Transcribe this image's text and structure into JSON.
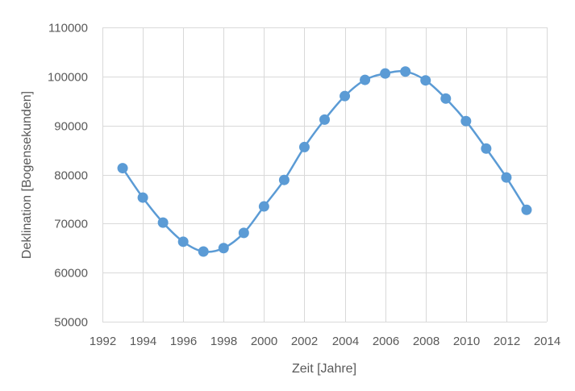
{
  "chart_data": {
    "type": "line",
    "title": "",
    "xlabel": "Zeit [Jahre]",
    "ylabel": "Deklination [Bogensekunden]",
    "xlim": [
      1992,
      2014
    ],
    "ylim": [
      50000,
      110000
    ],
    "x_ticks": [
      "1992",
      "1994",
      "1996",
      "1998",
      "2000",
      "2002",
      "2004",
      "2006",
      "2008",
      "2010",
      "2012",
      "2014"
    ],
    "y_ticks": [
      "50000",
      "60000",
      "70000",
      "80000",
      "90000",
      "100000",
      "110000"
    ],
    "grid": true,
    "legend": "none",
    "colors": {
      "series": "#5b9bd5",
      "grid": "#d9d9d9",
      "text": "#595959"
    },
    "series": [
      {
        "x": [
          1993,
          1994,
          1995,
          1996,
          1997,
          1998,
          1999,
          2000,
          2001,
          2002,
          2003,
          2004,
          2005,
          2006,
          2007,
          2008,
          2009,
          2010,
          2011,
          2012,
          2013
        ],
        "values": [
          81300,
          75300,
          70200,
          66300,
          64300,
          65000,
          68100,
          73500,
          78900,
          85600,
          91200,
          96000,
          99300,
          100600,
          101000,
          99200,
          95500,
          90900,
          85300,
          79400,
          72800
        ]
      }
    ]
  }
}
